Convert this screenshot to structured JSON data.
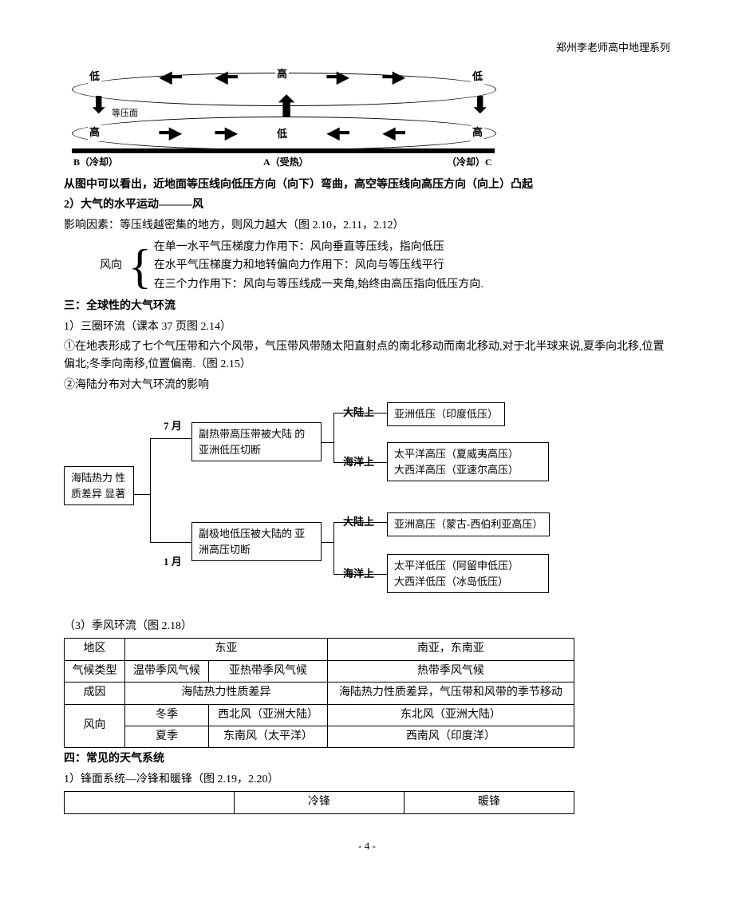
{
  "header": {
    "series": "郑州李老师高中地理系列"
  },
  "diagram1": {
    "top_labels": {
      "left": "低",
      "center": "高",
      "right": "低"
    },
    "mid_labels": {
      "left": "高",
      "center": "低",
      "right": "高",
      "isobaric": "等压面"
    },
    "bottom_labels": {
      "b": "B（冷却）",
      "a": "A（受热）",
      "c": "（冷却）C"
    }
  },
  "text": {
    "caption1": "从图中可以看出，近地面等压线向低压方向（向下）弯曲，高空等压线向高压方向（向上）凸起",
    "s2_title": "2）大气的水平运动———风",
    "s2_factor": "影响因素：等压线越密集的地方，则风力越大（图 2.10，2.11，2.12）",
    "wind_label": "风向",
    "wind_a": "在单一水平气压梯度力作用下：风向垂直等压线，指向低压",
    "wind_b": "在水平气压梯度力和地转偏向力作用下：风向与等压线平行",
    "wind_c": "在三个力作用下：风向与等压线成一夹角,始终由高压指向低压方向.",
    "s3_title": "三：全球性的大气环流",
    "s3_1": "1）三圈环流（课本 37 页图 2.14）",
    "s3_1a": "①在地表形成了七个气压带和六个风带，气压带风带随太阳直射点的南北移动而南北移动,对于北半球来说,夏季向北移,位置偏北;冬季向南移,位置偏南.（图 2.15）",
    "s3_1b": "②海陆分布对大气环流的影响",
    "s3_3": "（3）季风环流（图 2.18）",
    "s4_title": "四：常见的天气系统",
    "s4_1": "1）锋面系统—冷锋和暖锋（图 2.19，2.20）"
  },
  "flowchart": {
    "root": "海陆热力\n性质差异\n显著",
    "july": "7 月",
    "jan": "1 月",
    "box_jul": "副热带高压带被大陆\n的亚洲低压切断",
    "box_jan": "副极地低压被大陆的\n亚洲高压切断",
    "land": "大陆上",
    "sea": "海洋上",
    "jul_land": "亚洲低压（印度低压）",
    "jul_sea1": "太平洋高压（夏威夷高压）",
    "jul_sea2": "大西洋高压（亚速尔高压）",
    "jan_land": "亚洲高压（蒙古-西伯利亚高压）",
    "jan_sea1": "太平洋低压（阿留申低压）",
    "jan_sea2": "大西洋低压（冰岛低压）"
  },
  "monsoon_table": {
    "rows": [
      [
        "地区",
        {
          "colspan": 2,
          "text": "东亚"
        },
        "南亚，东南亚"
      ],
      [
        "气候类型",
        "温带季风气候",
        "亚热带季风气候",
        "热带季风气候"
      ],
      [
        "成因",
        {
          "colspan": 2,
          "text": "海陆热力性质差异"
        },
        "海陆热力性质差异，气压带和风带的季节移动"
      ],
      [
        {
          "rowspan": 2,
          "text": "风向"
        },
        "冬季",
        "西北风（亚洲大陆）",
        "东北风（亚洲大陆）"
      ],
      [
        "夏季",
        "东南风（太平洋）",
        "西南风（印度洋）"
      ]
    ]
  },
  "front_table": {
    "header": [
      "",
      "冷锋",
      "暖锋"
    ]
  },
  "footer": {
    "page": "- 4 -"
  }
}
